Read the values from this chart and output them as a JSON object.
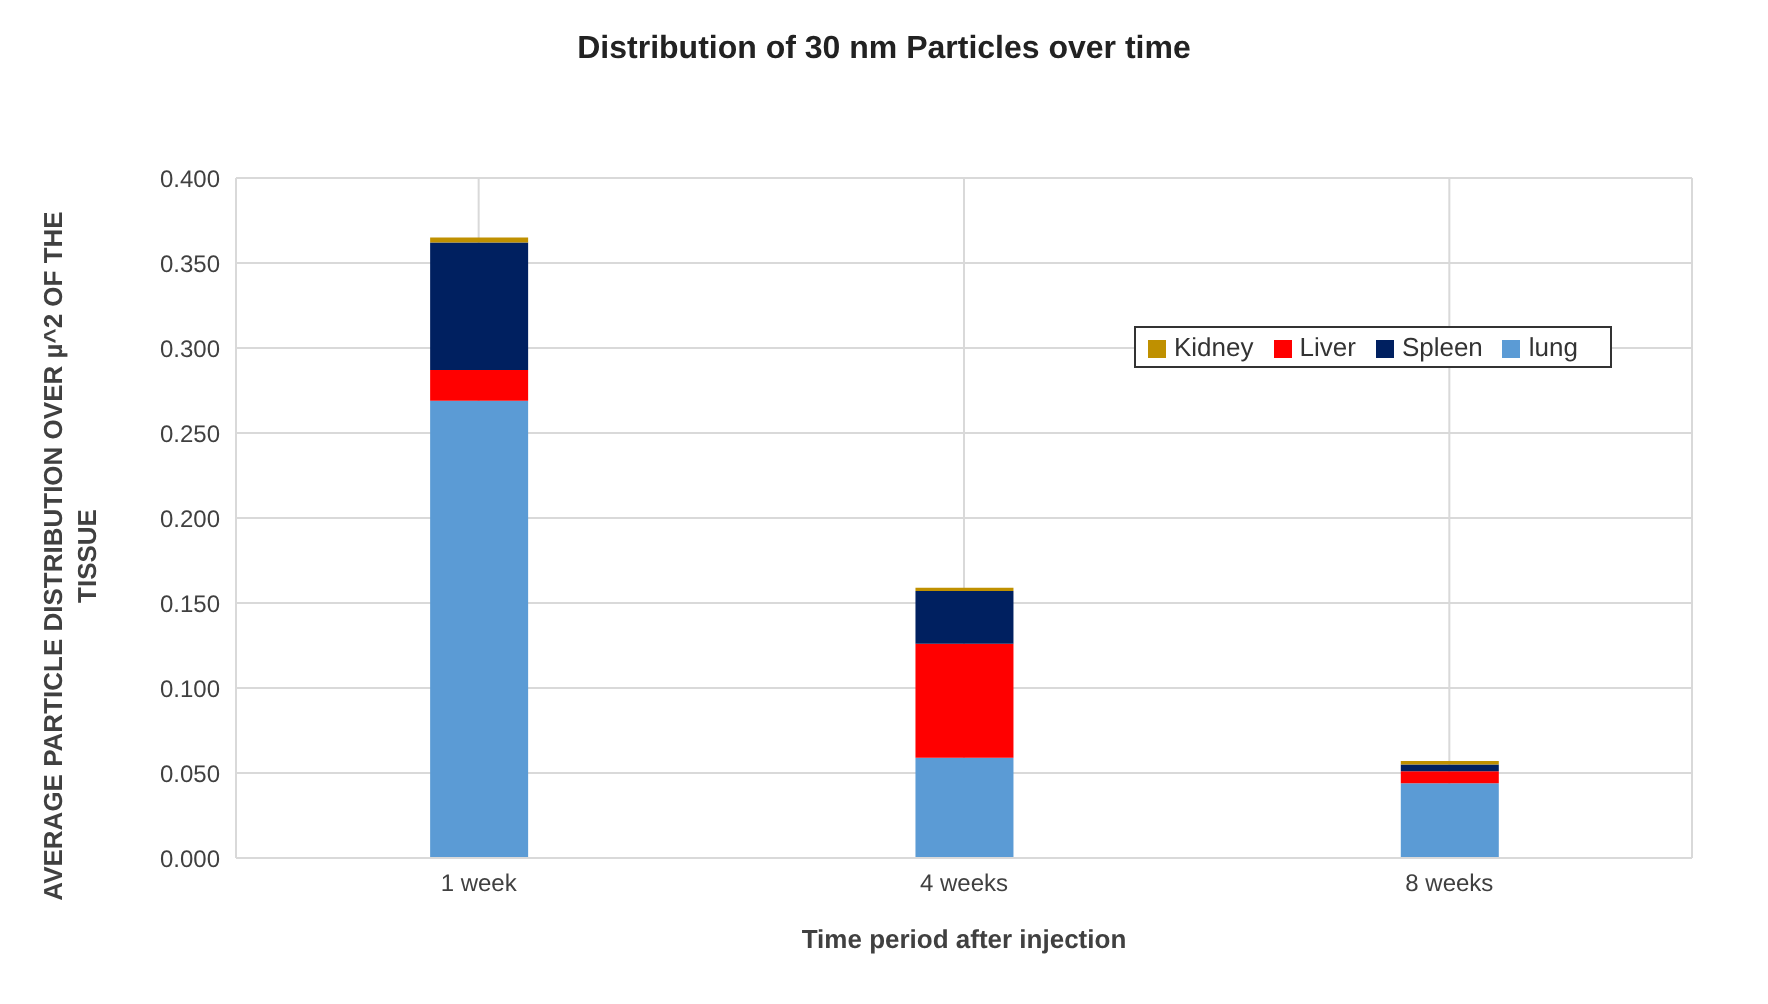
{
  "chart_data": {
    "type": "bar",
    "title": "Distribution of 30 nm Particles over time",
    "xlabel": "Time period after injection",
    "ylabel": "AVERAGE PARTICLE DISTRIBUTION OVER µ^2 OF THE TISSUE",
    "categories": [
      "1 week",
      "4 weeks",
      "8 weeks"
    ],
    "stacked": true,
    "series": [
      {
        "name": "lung",
        "color": "#5b9bd5",
        "values": [
          0.269,
          0.059,
          0.044
        ]
      },
      {
        "name": "Liver",
        "color": "#ff0000",
        "values": [
          0.018,
          0.067,
          0.007
        ]
      },
      {
        "name": "Spleen",
        "color": "#002060",
        "values": [
          0.075,
          0.031,
          0.004
        ]
      },
      {
        "name": "Kidney",
        "color": "#bf9000",
        "values": [
          0.003,
          0.002,
          0.002
        ]
      }
    ],
    "ylim": [
      0,
      0.4
    ],
    "yticks": [
      {
        "value": 0,
        "label": "0.000"
      },
      {
        "value": 0.05,
        "label": "0.050"
      },
      {
        "value": 0.1,
        "label": "0.100"
      },
      {
        "value": 0.15,
        "label": "0.150"
      },
      {
        "value": 0.2,
        "label": "0.200"
      },
      {
        "value": 0.25,
        "label": "0.250"
      },
      {
        "value": 0.3,
        "label": "0.300"
      },
      {
        "value": 0.35,
        "label": "0.350"
      },
      {
        "value": 0.4,
        "label": "0.400"
      }
    ],
    "grid": true,
    "legend": "top right"
  }
}
